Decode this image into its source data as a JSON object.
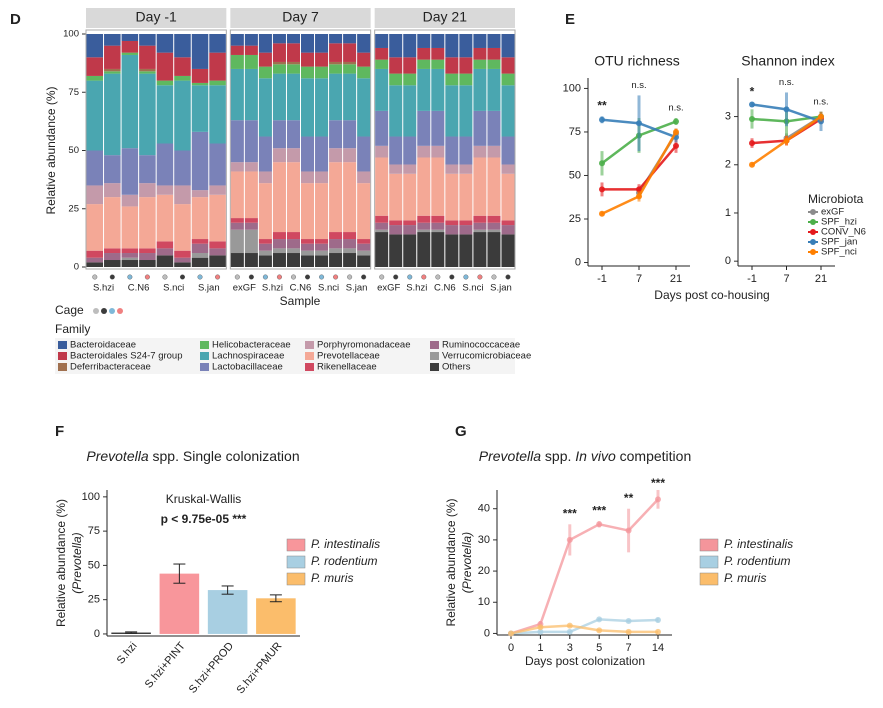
{
  "chart_data": [
    {
      "type": "stacked_bar",
      "panel": "D",
      "ylabel": "Relative abundance (%)",
      "xlabel": "Sample",
      "cage_label": "Cage",
      "cage_colors": [
        "#bdbdbd",
        "#3c3c3c",
        "#7fb8d8",
        "#f08080"
      ],
      "legend_title": "Family",
      "ylim": [
        0,
        100
      ],
      "yticks": [
        0,
        25,
        50,
        75,
        100
      ],
      "series": [
        {
          "name": "Bacteroidaceae",
          "color": "#3a5d9c"
        },
        {
          "name": "Bacteroidales S24-7 group",
          "color": "#c0394a"
        },
        {
          "name": "Deferribacteraceae",
          "color": "#a0704f"
        },
        {
          "name": "Helicobacteraceae",
          "color": "#5fb85f"
        },
        {
          "name": "Lachnospiraceae",
          "color": "#4aa6b0"
        },
        {
          "name": "Lactobacillaceae",
          "color": "#7a82b8"
        },
        {
          "name": "Porphyromonadaceae",
          "color": "#c49aaa"
        },
        {
          "name": "Prevotellaceae",
          "color": "#f4a896"
        },
        {
          "name": "Rikenellaceae",
          "color": "#d04860"
        },
        {
          "name": "Ruminococcaceae",
          "color": "#9e6a8a"
        },
        {
          "name": "Verrucomicrobiaceae",
          "color": "#999999"
        },
        {
          "name": "Others",
          "color": "#3b3b3b"
        }
      ],
      "facets": [
        {
          "title": "Day -1",
          "categories": [
            "S.hzi",
            null,
            "C.N6",
            null,
            "S.nci",
            null,
            "S.jan",
            null
          ],
          "values": [
            [
              10,
              5,
              3,
              5,
              8,
              10,
              15,
              8
            ],
            [
              8,
              10,
              5,
              10,
              12,
              8,
              6,
              12
            ],
            [
              0,
              1,
              0,
              1,
              0,
              0,
              0,
              0
            ],
            [
              2,
              1,
              1,
              1,
              2,
              2,
              1,
              2
            ],
            [
              30,
              35,
              40,
              35,
              25,
              30,
              20,
              25
            ],
            [
              15,
              12,
              20,
              12,
              18,
              15,
              25,
              18
            ],
            [
              8,
              6,
              5,
              6,
              4,
              8,
              3,
              4
            ],
            [
              20,
              22,
              18,
              22,
              20,
              20,
              18,
              20
            ],
            [
              3,
              2,
              2,
              2,
              3,
              3,
              2,
              3
            ],
            [
              2,
              3,
              2,
              3,
              3,
              2,
              4,
              3
            ],
            [
              0,
              0,
              1,
              0,
              0,
              0,
              2,
              0
            ],
            [
              2,
              3,
              3,
              3,
              5,
              2,
              4,
              5
            ]
          ]
        },
        {
          "title": "Day 7",
          "categories": [
            "exGF",
            null,
            "S.hzi",
            null,
            "C.N6",
            null,
            "S.nci",
            null,
            "S.jan",
            null
          ],
          "values": [
            [
              5,
              5,
              8,
              4,
              4,
              8,
              8,
              4,
              4,
              8
            ],
            [
              4,
              4,
              6,
              8,
              8,
              6,
              6,
              8,
              8,
              6
            ],
            [
              0,
              0,
              0,
              1,
              1,
              0,
              0,
              1,
              1,
              0
            ],
            [
              6,
              6,
              5,
              4,
              4,
              5,
              5,
              4,
              4,
              5
            ],
            [
              22,
              22,
              25,
              20,
              20,
              25,
              25,
              20,
              20,
              25
            ],
            [
              18,
              18,
              15,
              12,
              12,
              15,
              15,
              12,
              12,
              15
            ],
            [
              4,
              4,
              5,
              6,
              6,
              5,
              5,
              6,
              6,
              5
            ],
            [
              20,
              20,
              24,
              30,
              30,
              24,
              24,
              30,
              30,
              24
            ],
            [
              2,
              2,
              2,
              3,
              3,
              2,
              2,
              3,
              3,
              2
            ],
            [
              3,
              3,
              3,
              4,
              4,
              3,
              3,
              4,
              4,
              3
            ],
            [
              10,
              10,
              2,
              2,
              2,
              2,
              2,
              2,
              2,
              2
            ],
            [
              6,
              6,
              5,
              6,
              6,
              5,
              5,
              6,
              6,
              5
            ]
          ]
        },
        {
          "title": "Day 21",
          "categories": [
            "exGF",
            null,
            "S.hzi",
            null,
            "C.N6",
            null,
            "S.nci",
            null,
            "S.jan",
            null
          ],
          "values": [
            [
              6,
              10,
              10,
              6,
              6,
              10,
              10,
              6,
              6,
              10
            ],
            [
              5,
              7,
              7,
              5,
              5,
              7,
              7,
              5,
              5,
              7
            ],
            [
              0,
              0,
              0,
              0,
              0,
              0,
              0,
              0,
              0,
              0
            ],
            [
              4,
              5,
              5,
              4,
              4,
              5,
              5,
              4,
              4,
              5
            ],
            [
              18,
              22,
              22,
              18,
              18,
              22,
              22,
              18,
              18,
              22
            ],
            [
              15,
              12,
              12,
              15,
              15,
              12,
              12,
              15,
              15,
              12
            ],
            [
              5,
              4,
              4,
              5,
              5,
              4,
              4,
              5,
              5,
              4
            ],
            [
              25,
              20,
              20,
              25,
              25,
              20,
              20,
              25,
              25,
              20
            ],
            [
              3,
              2,
              2,
              3,
              3,
              2,
              2,
              3,
              3,
              2
            ],
            [
              3,
              4,
              4,
              3,
              3,
              4,
              4,
              3,
              3,
              4
            ],
            [
              1,
              0,
              0,
              1,
              1,
              0,
              0,
              1,
              1,
              0
            ],
            [
              15,
              14,
              14,
              15,
              15,
              14,
              14,
              15,
              15,
              14
            ]
          ]
        }
      ]
    },
    {
      "type": "line",
      "panel": "E",
      "title": "OTU richness",
      "xlabel": "Days post co-housing",
      "categories": [
        -1,
        7,
        21
      ],
      "ylim": [
        -2,
        106
      ],
      "yticks": [
        0,
        25,
        50,
        75,
        100
      ],
      "annotations": [
        "**",
        "n.s.",
        "n.s."
      ],
      "series": [
        {
          "name": "exGF",
          "color": "#8c8c8c",
          "values": [
            null,
            40,
            74
          ],
          "errors": [
            null,
            3,
            3
          ]
        },
        {
          "name": "SPF_hzi",
          "color": "#4daf4a",
          "values": [
            57,
            73,
            81
          ],
          "errors": [
            7,
            10,
            2
          ]
        },
        {
          "name": "CONV_N6",
          "color": "#e41a1c",
          "values": [
            42,
            42,
            67
          ],
          "errors": [
            4,
            3,
            4
          ]
        },
        {
          "name": "SPF_jan",
          "color": "#377eb8",
          "values": [
            82,
            80,
            72
          ],
          "errors": [
            2,
            16,
            3
          ]
        },
        {
          "name": "SPF_nci",
          "color": "#ff7f00",
          "values": [
            28,
            38,
            75
          ],
          "errors": [
            1,
            3,
            2
          ]
        }
      ]
    },
    {
      "type": "line",
      "title": "Shannon index",
      "legend_title": "Microbiota",
      "categories": [
        -1,
        7,
        21
      ],
      "ylim": [
        -0.1,
        3.8
      ],
      "yticks": [
        0,
        1,
        2,
        3
      ],
      "annotations": [
        "*",
        "n.s.",
        "n.s."
      ],
      "series": [
        {
          "name": "exGF",
          "color": "#8c8c8c",
          "values": [
            null,
            2.55,
            3.0
          ],
          "errors": [
            null,
            0.1,
            0.1
          ]
        },
        {
          "name": "SPF_hzi",
          "color": "#4daf4a",
          "values": [
            2.95,
            2.9,
            3.0
          ],
          "errors": [
            0.2,
            0.3,
            0.1
          ]
        },
        {
          "name": "CONV_N6",
          "color": "#e41a1c",
          "values": [
            2.45,
            2.5,
            2.95
          ],
          "errors": [
            0.1,
            0.1,
            0.1
          ]
        },
        {
          "name": "SPF_jan",
          "color": "#377eb8",
          "values": [
            3.25,
            3.15,
            2.9
          ],
          "errors": [
            0.05,
            0.35,
            0.2
          ]
        },
        {
          "name": "SPF_nci",
          "color": "#ff7f00",
          "values": [
            2.0,
            2.5,
            3.0
          ],
          "errors": [
            0.02,
            0.1,
            0.1
          ]
        }
      ]
    },
    {
      "type": "bar",
      "panel": "F",
      "title_parts": [
        {
          "text": "Prevotella",
          "italic": true
        },
        {
          "text": " spp. Single colonization",
          "italic": false
        }
      ],
      "ylabel": [
        "Relative abundance (%)",
        "(Prevotella)"
      ],
      "categories": [
        "S.hzi",
        "S.hzi+PINT",
        "S.hzi+PROD",
        "S.hzi+PMUR"
      ],
      "values": [
        1,
        44,
        32,
        26
      ],
      "errors": [
        0.5,
        7,
        3,
        2.5
      ],
      "colors": [
        "#333333",
        "#f8969b",
        "#a8cfe2",
        "#fbbd6b"
      ],
      "ylim": [
        -1.5,
        105
      ],
      "yticks": [
        0,
        25,
        50,
        75,
        100
      ],
      "annotations": [
        "Kruskal-Wallis",
        "p < 9.75e-05 ***"
      ],
      "legend": [
        {
          "name": "P. intestinalis",
          "color": "#f8969b"
        },
        {
          "name": "P. rodentium",
          "color": "#a8cfe2"
        },
        {
          "name": "P. muris",
          "color": "#fbbd6b"
        }
      ]
    },
    {
      "type": "line",
      "panel": "G",
      "title_parts": [
        {
          "text": "Prevotella",
          "italic": true
        },
        {
          "text": " spp. ",
          "italic": false
        },
        {
          "text": "In vivo",
          "italic": true
        },
        {
          "text": " competition",
          "italic": false
        }
      ],
      "ylabel": [
        "Relative abundance (%)",
        "(Prevotella)"
      ],
      "xlabel": "Days post colonization",
      "categories": [
        0,
        1,
        3,
        5,
        7,
        14
      ],
      "ylim": [
        -0.5,
        46
      ],
      "yticks": [
        0,
        10,
        20,
        30,
        40
      ],
      "annotations": [
        null,
        null,
        "***",
        "***",
        "**",
        "***"
      ],
      "series": [
        {
          "name": "P. intestinalis",
          "color": "#f4959b",
          "values": [
            0,
            3,
            30,
            35,
            33,
            43
          ],
          "errors": [
            0,
            1,
            5,
            1,
            7,
            3
          ]
        },
        {
          "name": "P. rodentium",
          "color": "#a8cfe2",
          "values": [
            0,
            0.5,
            0.5,
            4.5,
            4,
            4.3
          ],
          "errors": [
            0,
            0.2,
            0.2,
            0.5,
            0.5,
            0.8
          ]
        },
        {
          "name": "P. muris",
          "color": "#fbbd6b",
          "values": [
            0,
            2,
            2.5,
            1,
            0.5,
            0.5
          ],
          "errors": [
            0,
            0.5,
            0.3,
            0.3,
            0.2,
            0.2
          ]
        }
      ]
    }
  ]
}
